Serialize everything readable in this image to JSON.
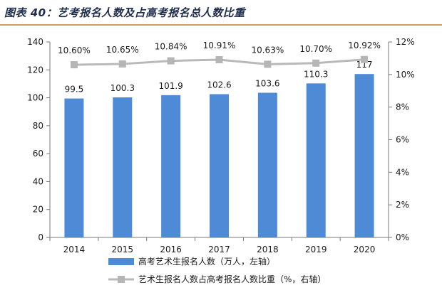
{
  "figure": {
    "title": "图表 40：艺考报名人数及占高考报名总人数比重"
  },
  "colors": {
    "bar": "#4e8ad6",
    "line": "#b9b9b9",
    "marker": "#b5b5b5",
    "title_rule": "#c9a064",
    "title_text": "#1f2d4d"
  },
  "chart_data": {
    "type": "bar",
    "categories": [
      "2014",
      "2015",
      "2016",
      "2017",
      "2018",
      "2019",
      "2020"
    ],
    "series": [
      {
        "name": "高考艺术生报名人数（万人，左轴）",
        "type": "bar",
        "axis": "left",
        "values": [
          99.5,
          100.3,
          101.9,
          102.6,
          103.6,
          110.3,
          117
        ],
        "labels": [
          "99.5",
          "100.3",
          "101.9",
          "102.6",
          "103.6",
          "110.3",
          "117"
        ]
      },
      {
        "name": "艺术生报名人数占高考报名人数比重（%，右轴）",
        "type": "line",
        "axis": "right",
        "values": [
          10.6,
          10.65,
          10.84,
          10.91,
          10.63,
          10.7,
          10.92
        ],
        "labels": [
          "10.60%",
          "10.65%",
          "10.84%",
          "10.91%",
          "10.63%",
          "10.70%",
          "10.92%"
        ]
      }
    ],
    "y_left": {
      "min": 0,
      "max": 140,
      "ticks": [
        0,
        20,
        40,
        60,
        80,
        100,
        120,
        140
      ],
      "tick_labels": [
        "0",
        "20",
        "40",
        "60",
        "80",
        "100",
        "120",
        "140"
      ]
    },
    "y_right": {
      "min": 0,
      "max": 12,
      "ticks": [
        0,
        2,
        4,
        6,
        8,
        10,
        12
      ],
      "tick_labels": [
        "0%",
        "2%",
        "4%",
        "6%",
        "8%",
        "10%",
        "12%"
      ]
    },
    "grid": false,
    "legend_position": "bottom-center"
  }
}
